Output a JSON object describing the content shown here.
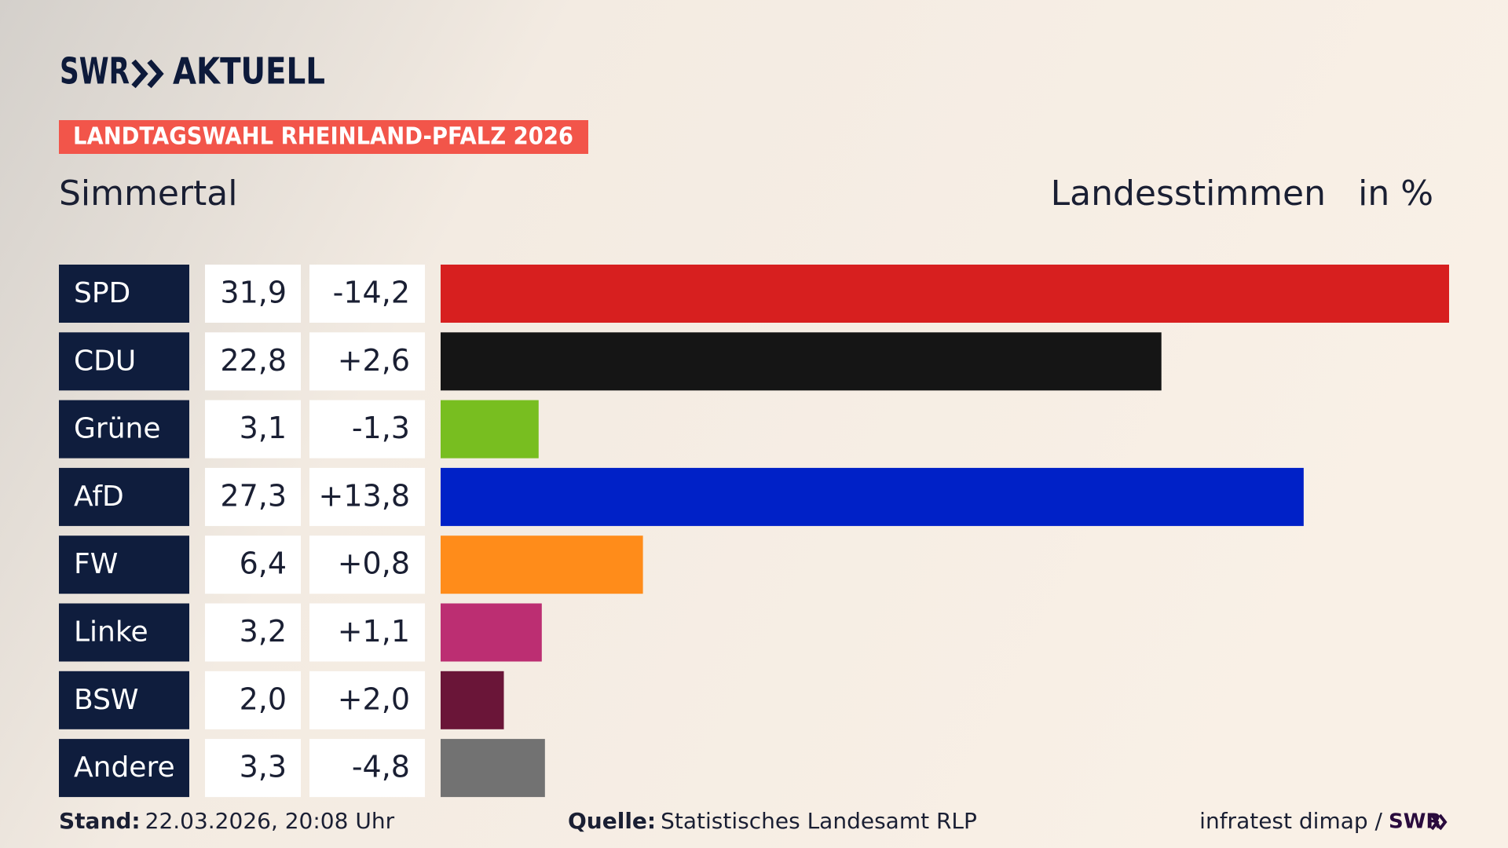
{
  "brand": {
    "logo": "SWR",
    "name": "AKTUELL"
  },
  "chart_data": {
    "type": "bar",
    "title": "LANDTAGSWAHL RHEINLAND-PFALZ 2026",
    "subtitle": "Simmertal",
    "value_axis_label": "Landesstimmen",
    "unit_label": "in %",
    "categories": [
      "SPD",
      "CDU",
      "Grüne",
      "AfD",
      "FW",
      "Linke",
      "BSW",
      "Andere"
    ],
    "values": [
      31.9,
      22.8,
      3.1,
      27.3,
      6.4,
      3.2,
      2.0,
      3.3
    ],
    "value_labels": [
      "31,9",
      "22,8",
      "3,1",
      "27,3",
      "6,4",
      "3,2",
      "2,0",
      "3,3"
    ],
    "colors": [
      "#d71f1f",
      "#151515",
      "#78be20",
      "#0021c7",
      "#ff8c1a",
      "#bc2e72",
      "#6a1538",
      "#727272"
    ],
    "changes": [
      -14.2,
      2.6,
      -1.3,
      13.8,
      0.8,
      1.1,
      2.0,
      -4.8
    ],
    "change_labels": [
      "-14,2",
      "+2,6",
      "-1,3",
      "+13,8",
      "+0,8",
      "+1,1",
      "+2,0",
      "-4,8"
    ],
    "xlim": [
      0,
      31.9
    ]
  },
  "footer": {
    "stand_label": "Stand:",
    "stand": "22.03.2026, 20:08 Uhr",
    "source_label": "Quelle:",
    "source": "Statistisches Landesamt RLP",
    "credit": "infratest dimap /",
    "credit_logo": "SWR"
  }
}
